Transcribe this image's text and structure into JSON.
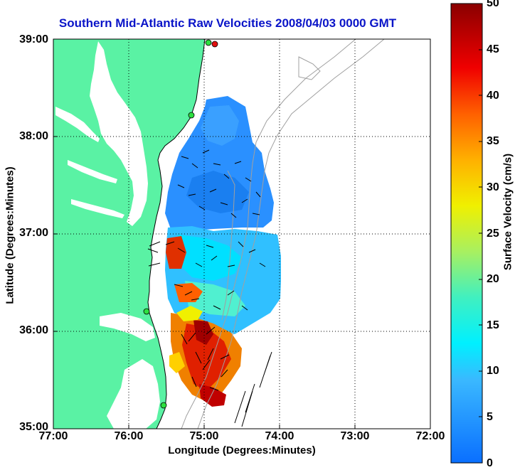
{
  "title": "Southern Mid-Atlantic Raw Velocities 2008/04/03 0000 GMT",
  "xlabel": "Longitude (Degrees:Minutes)",
  "ylabel": "Latitude (Degrees:Minutes)",
  "colorbar": {
    "label": "Surface Velocity (cm/s)",
    "ticks": [
      "50",
      "45",
      "40",
      "35",
      "30",
      "25",
      "20",
      "15",
      "10",
      "5",
      "0"
    ]
  },
  "xticks": [
    "77:00",
    "76:00",
    "75:00",
    "74:00",
    "73:00",
    "72:00"
  ],
  "yticks": [
    "39:00",
    "38:00",
    "37:00",
    "36:00",
    "35:00"
  ],
  "colors": {
    "land": "#5af2a4",
    "water": "#ffffff",
    "title": "#0a14c8",
    "coastline": "#000000",
    "bathymetry": "#a0a0a0"
  }
}
